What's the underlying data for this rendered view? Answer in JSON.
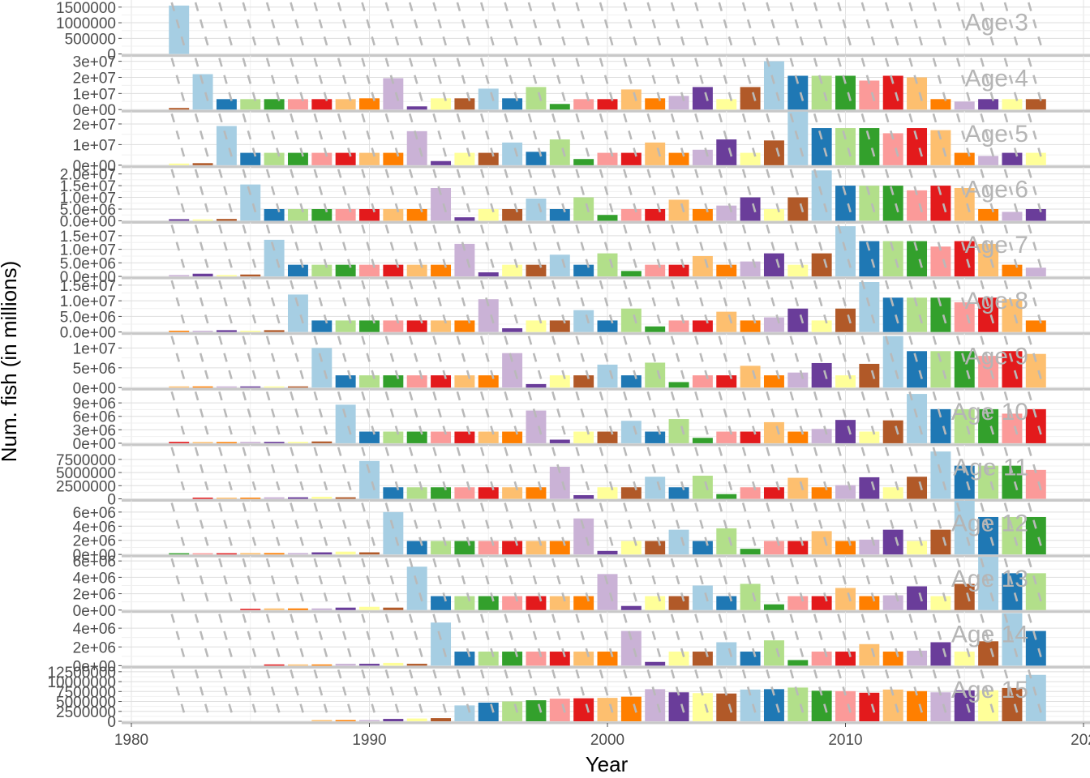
{
  "chart_data": {
    "type": "bar",
    "xlabel": "Year",
    "ylabel": "Num. fish (in millions)",
    "x_ticks": [
      1980,
      1990,
      2000,
      2010,
      "202"
    ],
    "xlim": [
      1980,
      2020
    ],
    "grid": true,
    "legend": "none",
    "years": [
      1982,
      1983,
      1984,
      1985,
      1986,
      1987,
      1988,
      1989,
      1990,
      1991,
      1992,
      1993,
      1994,
      1995,
      1996,
      1997,
      1998,
      1999,
      2000,
      2001,
      2002,
      2003,
      2004,
      2005,
      2006,
      2007,
      2008,
      2009,
      2010,
      2011,
      2012,
      2013,
      2014,
      2015,
      2016,
      2017,
      2018
    ],
    "cohort_palette": [
      "#a6cee3",
      "#1f78b4",
      "#b2df8a",
      "#33a02c",
      "#fb9a99",
      "#e31a1c",
      "#fdbf6f",
      "#ff7f00",
      "#cab2d6",
      "#6a3d9a",
      "#ffff99",
      "#b15928"
    ],
    "panels": [
      {
        "label": "Age 3",
        "ymax": 1650000,
        "ticks": [
          {
            "v": 0,
            "t": "0"
          },
          {
            "v": 500000,
            "t": "500000"
          },
          {
            "v": 1000000,
            "t": "1000000"
          },
          {
            "v": 1500000,
            "t": "1500000"
          }
        ],
        "values": [
          1550000,
          0,
          0,
          0,
          0,
          0,
          0,
          0,
          0,
          0,
          0,
          0,
          0,
          0,
          0,
          0,
          0,
          0,
          0,
          0,
          0,
          0,
          0,
          0,
          0,
          0,
          0,
          0,
          0,
          0,
          0,
          0,
          0,
          0,
          0,
          0,
          0
        ]
      },
      {
        "label": "Age 4",
        "ymax": 32000000,
        "ticks": [
          {
            "v": 0,
            "t": "0e+00"
          },
          {
            "v": 10000000,
            "t": "1e+07"
          },
          {
            "v": 20000000,
            "t": "2e+07"
          },
          {
            "v": 30000000,
            "t": "3e+07"
          }
        ],
        "values": [
          1000000,
          22000000,
          6500000,
          6500000,
          6500000,
          6500000,
          6500000,
          6500000,
          7000000,
          19500000,
          2000000,
          7000000,
          7000000,
          13000000,
          7000000,
          14000000,
          3500000,
          6500000,
          6500000,
          12500000,
          7000000,
          8500000,
          14000000,
          6500000,
          14000000,
          30000000,
          21000000,
          21000000,
          21000000,
          18000000,
          21000000,
          20000000,
          6500000,
          5000000,
          6500000,
          6500000,
          6500000
        ]
      },
      {
        "label": "Age 5",
        "ymax": 25000000,
        "ticks": [
          {
            "v": 0,
            "t": "0e+00"
          },
          {
            "v": 10000000,
            "t": "1e+07"
          },
          {
            "v": 20000000,
            "t": "2e+07"
          }
        ],
        "values": [
          800000,
          1000000,
          19000000,
          6000000,
          6000000,
          6000000,
          6000000,
          6000000,
          6000000,
          6000000,
          16500000,
          2000000,
          6000000,
          6000000,
          11000000,
          6500000,
          12500000,
          3000000,
          6000000,
          6000000,
          11000000,
          6000000,
          7500000,
          12500000,
          6000000,
          12000000,
          26000000,
          18000000,
          18000000,
          18000000,
          15500000,
          18000000,
          17000000,
          6000000,
          4500000,
          6000000,
          6000000
        ]
      },
      {
        "label": "Age 6",
        "ymax": 22000000,
        "ticks": [
          {
            "v": 0,
            "t": "0.0e+00"
          },
          {
            "v": 5000000,
            "t": "5.0e+06"
          },
          {
            "v": 10000000,
            "t": "1.0e+07"
          },
          {
            "v": 15000000,
            "t": "1.5e+07"
          },
          {
            "v": 20000000,
            "t": "2.0e+07"
          }
        ],
        "values": [
          700000,
          600000,
          800000,
          15500000,
          5000000,
          5000000,
          5000000,
          5000000,
          5000000,
          5000000,
          5000000,
          14000000,
          1500000,
          5000000,
          5000000,
          9500000,
          5000000,
          10000000,
          2500000,
          5000000,
          5000000,
          9000000,
          5000000,
          6500000,
          10000000,
          5000000,
          10000000,
          21500000,
          15000000,
          15000000,
          15000000,
          13000000,
          15000000,
          14000000,
          5000000,
          3800000,
          5000000
        ]
      },
      {
        "label": "Age 7",
        "ymax": 19000000,
        "ticks": [
          {
            "v": 0,
            "t": "0.0e+00"
          },
          {
            "v": 5000000,
            "t": "5.0e+06"
          },
          {
            "v": 10000000,
            "t": "1.0e+07"
          },
          {
            "v": 15000000,
            "t": "1.5e+07"
          }
        ],
        "values": [
          500000,
          1000000,
          500000,
          700000,
          13500000,
          4300000,
          4300000,
          4300000,
          4300000,
          4300000,
          4300000,
          4300000,
          12000000,
          1500000,
          4300000,
          4300000,
          8000000,
          4300000,
          8500000,
          2000000,
          4300000,
          4300000,
          7500000,
          4300000,
          5500000,
          8500000,
          4300000,
          8500000,
          18500000,
          13000000,
          13000000,
          13000000,
          11000000,
          13000000,
          12000000,
          4300000,
          3200000
        ]
      },
      {
        "label": "Age 8",
        "ymax": 16500000,
        "ticks": [
          {
            "v": 0,
            "t": "0.0e+00"
          },
          {
            "v": 5000000,
            "t": "5.0e+06"
          },
          {
            "v": 10000000,
            "t": "1.0e+07"
          },
          {
            "v": 15000000,
            "t": "1.5e+07"
          }
        ],
        "values": [
          400000,
          400000,
          600000,
          400000,
          600000,
          12000000,
          3700000,
          3700000,
          3700000,
          3700000,
          3700000,
          3700000,
          3700000,
          10500000,
          1200000,
          3700000,
          3700000,
          7000000,
          3700000,
          7500000,
          1800000,
          3700000,
          3700000,
          6500000,
          3700000,
          4700000,
          7500000,
          3700000,
          7500000,
          16000000,
          11000000,
          11000000,
          11000000,
          9500000,
          11000000,
          10500000,
          3700000
        ]
      },
      {
        "label": "Age 9",
        "ymax": 13000000,
        "ticks": [
          {
            "v": 0,
            "t": "0e+00"
          },
          {
            "v": 5000000,
            "t": "5e+06"
          },
          {
            "v": 10000000,
            "t": "1e+07"
          }
        ],
        "values": [
          200000,
          200000,
          200000,
          300000,
          300000,
          200000,
          10000000,
          3100000,
          3100000,
          3100000,
          3100000,
          3100000,
          3100000,
          3100000,
          8700000,
          900000,
          3100000,
          3100000,
          5800000,
          3100000,
          6300000,
          1400000,
          3100000,
          3100000,
          5500000,
          3100000,
          3800000,
          6200000,
          3100000,
          6000000,
          13000000,
          9200000,
          9200000,
          9200000,
          8000000,
          9200000,
          8500000
        ]
      },
      {
        "label": "Age 10",
        "ymax": 11500000,
        "ticks": [
          {
            "v": 0,
            "t": "0e+00"
          },
          {
            "v": 3000000,
            "t": "3e+06"
          },
          {
            "v": 6000000,
            "t": "6e+06"
          },
          {
            "v": 9000000,
            "t": "9e+06"
          }
        ],
        "values": [
          300000,
          200000,
          200000,
          300000,
          300000,
          300000,
          400000,
          8600000,
          2600000,
          2600000,
          2600000,
          2600000,
          2600000,
          2600000,
          2600000,
          7300000,
          800000,
          2600000,
          2600000,
          5000000,
          2600000,
          5400000,
          1200000,
          2600000,
          2600000,
          4700000,
          2600000,
          3200000,
          5200000,
          2600000,
          5100000,
          11000000,
          7600000,
          7600000,
          7600000,
          6600000,
          7600000
        ]
      },
      {
        "label": "Age 11",
        "ymax": 9800000,
        "ticks": [
          {
            "v": 0,
            "t": "0"
          },
          {
            "v": 2500000,
            "t": "2500000"
          },
          {
            "v": 5000000,
            "t": "5000000"
          },
          {
            "v": 7500000,
            "t": "7500000"
          }
        ],
        "values": [
          0,
          200000,
          200000,
          200000,
          300000,
          300000,
          400000,
          300000,
          7200000,
          2200000,
          2200000,
          2200000,
          2200000,
          2200000,
          2200000,
          2200000,
          6100000,
          700000,
          2200000,
          2200000,
          4200000,
          2200000,
          4400000,
          900000,
          2200000,
          2200000,
          4000000,
          2200000,
          2600000,
          4100000,
          2200000,
          4200000,
          9000000,
          6300000,
          6300000,
          6300000,
          5500000
        ]
      },
      {
        "label": "Age 12",
        "ymax": 7300000,
        "ticks": [
          {
            "v": 0,
            "t": "0e+00"
          },
          {
            "v": 2000000,
            "t": "2e+06"
          },
          {
            "v": 4000000,
            "t": "4e+06"
          },
          {
            "v": 6000000,
            "t": "6e+06"
          }
        ],
        "values": [
          100000,
          100000,
          100000,
          200000,
          200000,
          200000,
          300000,
          400000,
          300000,
          6000000,
          1900000,
          1900000,
          1900000,
          1900000,
          1900000,
          1900000,
          1900000,
          5100000,
          500000,
          1900000,
          1900000,
          3500000,
          1900000,
          3700000,
          800000,
          1900000,
          1900000,
          3300000,
          1900000,
          2100000,
          3500000,
          1900000,
          3500000,
          7600000,
          5300000,
          5300000,
          5300000
        ]
      },
      {
        "label": "Age 13",
        "ymax": 6300000,
        "ticks": [
          {
            "v": 0,
            "t": "0e+00"
          },
          {
            "v": 2000000,
            "t": "2e+06"
          },
          {
            "v": 4000000,
            "t": "4e+06"
          },
          {
            "v": 6000000,
            "t": "6e+06"
          }
        ],
        "values": [
          0,
          0,
          0,
          100000,
          200000,
          200000,
          200000,
          300000,
          400000,
          300000,
          5300000,
          1700000,
          1700000,
          1700000,
          1700000,
          1700000,
          1700000,
          1700000,
          4400000,
          500000,
          1700000,
          1700000,
          3000000,
          1700000,
          3200000,
          700000,
          1700000,
          1700000,
          2700000,
          1700000,
          1800000,
          2900000,
          1700000,
          3200000,
          6500000,
          4500000,
          4500000
        ]
      },
      {
        "label": "Age 14",
        "ymax": 5500000,
        "ticks": [
          {
            "v": 0,
            "t": "0e+00"
          },
          {
            "v": 2000000,
            "t": "2e+06"
          },
          {
            "v": 4000000,
            "t": "4e+06"
          }
        ],
        "values": [
          0,
          0,
          0,
          0,
          100000,
          100000,
          100000,
          200000,
          200000,
          300000,
          200000,
          4600000,
          1500000,
          1500000,
          1500000,
          1500000,
          1500000,
          1500000,
          1500000,
          3700000,
          400000,
          1500000,
          1500000,
          2500000,
          1500000,
          2700000,
          600000,
          1500000,
          1500000,
          2300000,
          1500000,
          1600000,
          2500000,
          1500000,
          2600000,
          5600000,
          3700000
        ]
      },
      {
        "label": "Age 15",
        "ymax": 13000000,
        "ticks": [
          {
            "v": 0,
            "t": "0"
          },
          {
            "v": 2500000,
            "t": "2500000"
          },
          {
            "v": 5000000,
            "t": "5000000"
          },
          {
            "v": 7500000,
            "t": "7500000"
          },
          {
            "v": 10000000,
            "t": "10000000"
          },
          {
            "v": 12500000,
            "t": "12500000"
          }
        ],
        "values": [
          0,
          0,
          0,
          0,
          0,
          0,
          200000,
          300000,
          300000,
          600000,
          700000,
          800000,
          4000000,
          4700000,
          5000000,
          5300000,
          5700000,
          5800000,
          5900000,
          6200000,
          8100000,
          7300000,
          7100000,
          7000000,
          8000000,
          8100000,
          8500000,
          7700000,
          7600000,
          7200000,
          8000000,
          7600000,
          7300000,
          7800000,
          7800000,
          8400000,
          11700000
        ]
      }
    ]
  }
}
